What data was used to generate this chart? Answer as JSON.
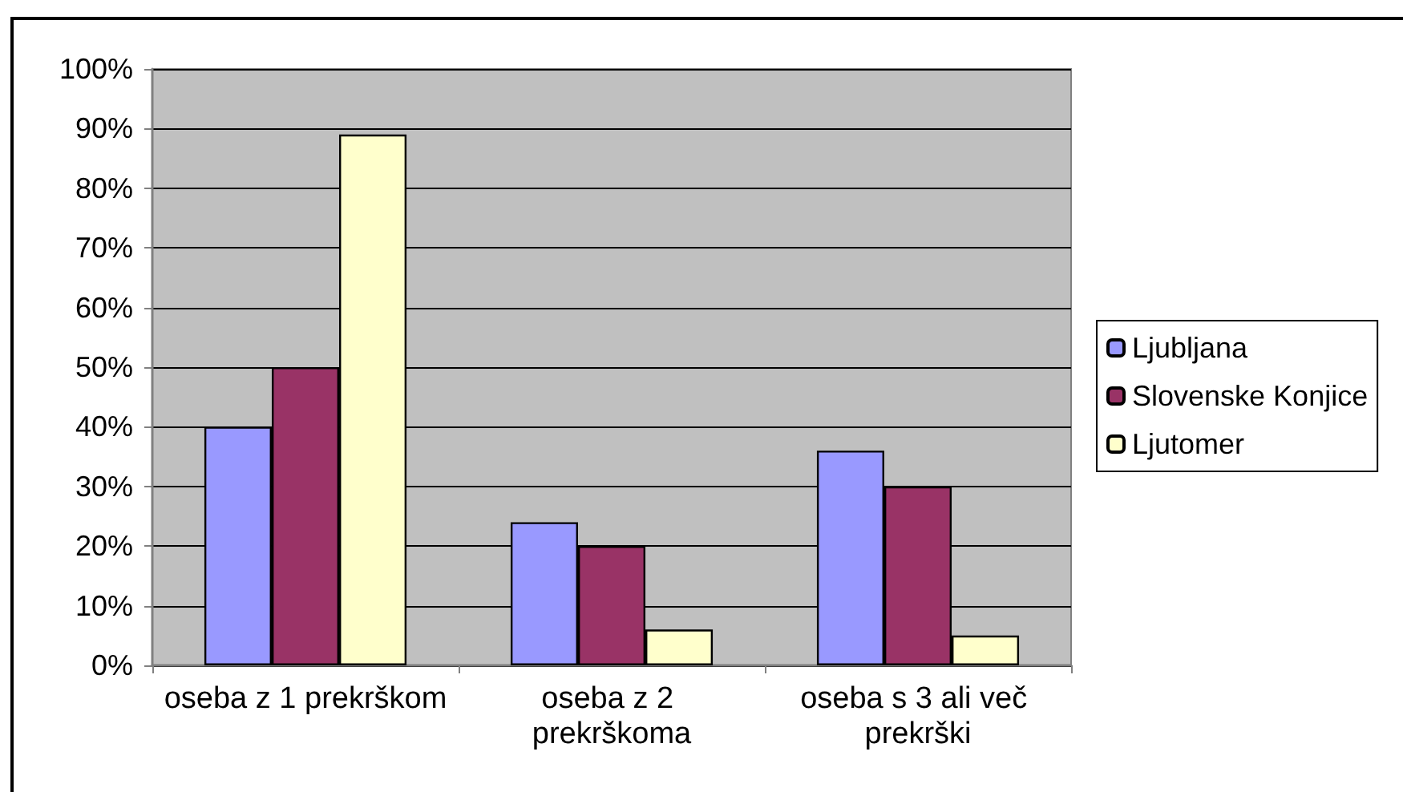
{
  "chart_data": {
    "type": "bar",
    "categories": [
      "oseba z 1 prekrškom",
      "oseba z 2 prekrškoma",
      "oseba s 3 ali več prekrški"
    ],
    "series": [
      {
        "name": "Ljubljana",
        "color": "#9999ff",
        "values": [
          40,
          24,
          36
        ]
      },
      {
        "name": "Slovenske Konjice",
        "color": "#993366",
        "values": [
          50,
          20,
          30
        ]
      },
      {
        "name": "Ljutomer",
        "color": "#ffffcc",
        "values": [
          89,
          6,
          5
        ]
      }
    ],
    "ylim": [
      0,
      100
    ],
    "yticks": [
      {
        "value": 0,
        "label": "0%"
      },
      {
        "value": 10,
        "label": "10%"
      },
      {
        "value": 20,
        "label": "20%"
      },
      {
        "value": 30,
        "label": "30%"
      },
      {
        "value": 40,
        "label": "40%"
      },
      {
        "value": 50,
        "label": "50%"
      },
      {
        "value": 60,
        "label": "60%"
      },
      {
        "value": 70,
        "label": "70%"
      },
      {
        "value": 80,
        "label": "80%"
      },
      {
        "value": 90,
        "label": "90%"
      },
      {
        "value": 100,
        "label": "100%"
      }
    ],
    "grid": "y",
    "legend": "right"
  }
}
